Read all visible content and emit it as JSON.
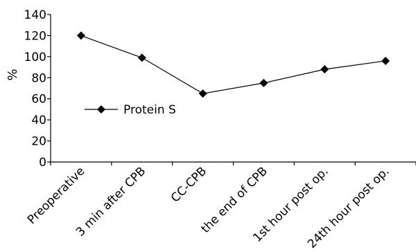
{
  "chart_data": {
    "type": "line",
    "title": "",
    "xlabel": "",
    "ylabel": "%",
    "ylim": [
      0,
      140
    ],
    "yticks": [
      0,
      20,
      40,
      60,
      80,
      100,
      120,
      140
    ],
    "grid": false,
    "legend": "center-left",
    "categories": [
      "Preoperative",
      "3 min after CPB",
      "CC-CPB",
      "the end of CPB",
      "1st hour post op.",
      "24th hour post op."
    ],
    "series": [
      {
        "name": "Protein S",
        "values": [
          120,
          99,
          65,
          75,
          88,
          96
        ],
        "color": "#000000",
        "marker": "diamond"
      }
    ]
  }
}
